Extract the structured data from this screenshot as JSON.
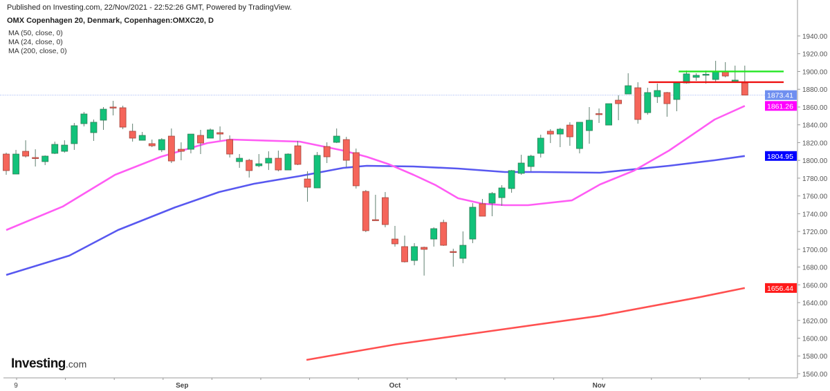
{
  "header": {
    "published": "Published on Investing.com, 22/Nov/2021 - 22:52:26 GMT, Powered by TradingView.",
    "title": "OMX Copenhagen 20, Denmark, Copenhagen:OMXC20, D"
  },
  "logo": {
    "brand": "Investing",
    "domain": ".com"
  },
  "colors": {
    "up": "#12c27a",
    "down": "#f5655a",
    "ma50": "#5858f0",
    "ma24": "#ff5cf4",
    "ma200": "#ff5050",
    "resistance_green": "#22e622",
    "resistance_red": "#ee1111",
    "last_price": "#6f8ff0"
  },
  "chart_data": {
    "type": "candlestick",
    "title": "OMX Copenhagen 20, Denmark, Copenhagen:OMXC20, D",
    "ylim": [
      1550,
      1950
    ],
    "y_ticks": [
      "1940.00",
      "1920.00",
      "1900.00",
      "1880.00",
      "1860.00",
      "1840.00",
      "1820.00",
      "1800.00",
      "1780.00",
      "1760.00",
      "1740.00",
      "1720.00",
      "1700.00",
      "1680.00",
      "1660.00",
      "1640.00",
      "1620.00",
      "1600.00",
      "1580.00",
      "1560.00"
    ],
    "y_tick_values": [
      1940,
      1920,
      1900,
      1880,
      1860,
      1840,
      1820,
      1800,
      1780,
      1760,
      1740,
      1720,
      1700,
      1680,
      1660,
      1640,
      1620,
      1600,
      1580,
      1560
    ],
    "x_labels": [
      {
        "label": "9",
        "bar": 1
      },
      {
        "label": "Sep",
        "bar": 18.1
      },
      {
        "label": "Oct",
        "bar": 40
      },
      {
        "label": "Nov",
        "bar": 61
      }
    ],
    "candles": [
      [
        1807.1,
        1808.7,
        1783.8,
        1788.5
      ],
      [
        1784.6,
        1811.8,
        1784.6,
        1807.1
      ],
      [
        1810.2,
        1822.6,
        1803.2,
        1804.8
      ],
      [
        1803.2,
        1812.5,
        1793.1,
        1802.5
      ],
      [
        1798.6,
        1805.6,
        1794.7,
        1804.8
      ],
      [
        1807.9,
        1821.1,
        1807.1,
        1818.0
      ],
      [
        1810.2,
        1822.6,
        1808.7,
        1817.2
      ],
      [
        1818.8,
        1842.1,
        1811.8,
        1839.0
      ],
      [
        1841.3,
        1854.5,
        1838.2,
        1852.2
      ],
      [
        1831.2,
        1846.0,
        1821.9,
        1842.9
      ],
      [
        1845.2,
        1860.0,
        1834.3,
        1857.6
      ],
      [
        1860.0,
        1867.0,
        1850.6,
        1859.6
      ],
      [
        1859.2,
        1861.5,
        1835.1,
        1837.4
      ],
      [
        1832.8,
        1841.3,
        1821.1,
        1825.0
      ],
      [
        1822.6,
        1832.0,
        1822.6,
        1828.1
      ],
      [
        1818.8,
        1823.4,
        1814.9,
        1816.4
      ],
      [
        1811.8,
        1825.0,
        1809.4,
        1823.4
      ],
      [
        1827.3,
        1835.9,
        1797.0,
        1799.3
      ],
      [
        1812.5,
        1820.3,
        1800.1,
        1810.2
      ],
      [
        1812.5,
        1829.6,
        1807.9,
        1829.6
      ],
      [
        1828.1,
        1834.3,
        1807.1,
        1819.5
      ],
      [
        1825.0,
        1835.9,
        1825.0,
        1834.3
      ],
      [
        1831.2,
        1838.2,
        1822.6,
        1829.6
      ],
      [
        1823.4,
        1828.1,
        1803.2,
        1807.1
      ],
      [
        1798.6,
        1807.1,
        1791.6,
        1802.4
      ],
      [
        1800.1,
        1801.7,
        1780.7,
        1788.5
      ],
      [
        1793.9,
        1807.1,
        1792.3,
        1796.2
      ],
      [
        1797.0,
        1810.2,
        1789.2,
        1802.4
      ],
      [
        1802.4,
        1811.0,
        1787.7,
        1789.2
      ],
      [
        1789.2,
        1807.9,
        1789.2,
        1807.1
      ],
      [
        1816.4,
        1821.9,
        1794.7,
        1795.5
      ],
      [
        1779.1,
        1787.7,
        1753.5,
        1769.8
      ],
      [
        1769.0,
        1809.4,
        1769.0,
        1805.6
      ],
      [
        1815.6,
        1820.3,
        1797.0,
        1804.0
      ],
      [
        1820.3,
        1835.9,
        1819.5,
        1827.3
      ],
      [
        1823.4,
        1826.5,
        1792.3,
        1800.1
      ],
      [
        1808.7,
        1813.3,
        1768.3,
        1771.4
      ],
      [
        1765.1,
        1766.7,
        1719.3,
        1720.9
      ],
      [
        1733.3,
        1761.3,
        1732.5,
        1732.5
      ],
      [
        1758.1,
        1764.4,
        1724.7,
        1727.8
      ],
      [
        1711.5,
        1726.3,
        1703.0,
        1706.1
      ],
      [
        1703.0,
        1715.4,
        1685.1,
        1685.9
      ],
      [
        1687.4,
        1706.9,
        1682.0,
        1703.0
      ],
      [
        1702.2,
        1703.0,
        1670.4,
        1699.9
      ],
      [
        1711.5,
        1724.7,
        1703.0,
        1723.2
      ],
      [
        1730.2,
        1733.3,
        1703.8,
        1704.5
      ],
      [
        1697.5,
        1700.6,
        1680.4,
        1697.0
      ],
      [
        1689.8,
        1720.1,
        1684.3,
        1704.5
      ],
      [
        1711.5,
        1751.9,
        1706.9,
        1747.3
      ],
      [
        1751.2,
        1756.6,
        1737.2,
        1737.2
      ],
      [
        1751.9,
        1764.4,
        1737.2,
        1762.8
      ],
      [
        1758.1,
        1772.1,
        1748.8,
        1769.0
      ],
      [
        1768.3,
        1789.2,
        1763.6,
        1788.5
      ],
      [
        1785.4,
        1806.3,
        1783.8,
        1797.0
      ],
      [
        1793.1,
        1806.3,
        1787.7,
        1804.8
      ],
      [
        1807.9,
        1828.9,
        1803.2,
        1825.0
      ],
      [
        1832.8,
        1835.1,
        1819.5,
        1829.6
      ],
      [
        1829.6,
        1836.6,
        1814.9,
        1835.1
      ],
      [
        1839.7,
        1842.9,
        1816.4,
        1826.5
      ],
      [
        1813.3,
        1842.9,
        1807.9,
        1842.9
      ],
      [
        1833.5,
        1860.0,
        1818.8,
        1845.2
      ],
      [
        1852.6,
        1858.4,
        1842.1,
        1852.2
      ],
      [
        1839.7,
        1863.8,
        1839.7,
        1863.8
      ],
      [
        1867.7,
        1873.2,
        1845.2,
        1863.8
      ],
      [
        1874.7,
        1898.0,
        1874.7,
        1884.0
      ],
      [
        1881.7,
        1887.9,
        1841.3,
        1846.0
      ],
      [
        1853.7,
        1881.7,
        1851.4,
        1876.3
      ],
      [
        1871.6,
        1886.4,
        1864.6,
        1878.6
      ],
      [
        1876.3,
        1877.0,
        1849.1,
        1863.8
      ],
      [
        1868.5,
        1887.9,
        1855.3,
        1887.1
      ],
      [
        1887.1,
        1901.1,
        1886.4,
        1897.3
      ],
      [
        1893.4,
        1898.0,
        1889.5,
        1895.7
      ],
      [
        1896.5,
        1901.1,
        1886.4,
        1896.9
      ],
      [
        1891.0,
        1912.0,
        1888.7,
        1900.4
      ],
      [
        1900.4,
        1910.5,
        1893.4,
        1894.9
      ],
      [
        1888.0,
        1906.6,
        1887.1,
        1890.3
      ],
      [
        1887.1,
        1906.6,
        1873.2,
        1873.41
      ]
    ],
    "series": [
      {
        "name": "MA (50, close, 0)",
        "last": "1804.95",
        "points": [
          [
            0,
            1671.1
          ],
          [
            6.5,
            1692.9
          ],
          [
            11.5,
            1721.6
          ],
          [
            17.4,
            1747.3
          ],
          [
            21.9,
            1764.4
          ],
          [
            25.5,
            1773.7
          ],
          [
            30.2,
            1782.3
          ],
          [
            34.7,
            1791.6
          ],
          [
            37.1,
            1793.9
          ],
          [
            41.9,
            1793.1
          ],
          [
            46.5,
            1790.8
          ],
          [
            51.3,
            1786.9
          ],
          [
            54.9,
            1786.9
          ],
          [
            61.1,
            1786.1
          ],
          [
            68.2,
            1793.9
          ],
          [
            72.9,
            1800.1
          ],
          [
            76,
            1804.95
          ]
        ]
      },
      {
        "name": "MA (24, close, 0)",
        "last": "1861.26",
        "points": [
          [
            0,
            1721.6
          ],
          [
            5.8,
            1748.0
          ],
          [
            11.2,
            1783.8
          ],
          [
            15.9,
            1804.0
          ],
          [
            20.7,
            1819.5
          ],
          [
            23.1,
            1823.4
          ],
          [
            30.2,
            1821.1
          ],
          [
            34.7,
            1811.0
          ],
          [
            37.1,
            1804.0
          ],
          [
            39.4,
            1795.5
          ],
          [
            41.9,
            1783.8
          ],
          [
            44.2,
            1772.1
          ],
          [
            46.5,
            1757.4
          ],
          [
            49.0,
            1751.2
          ],
          [
            51.3,
            1749.6
          ],
          [
            53.7,
            1749.6
          ],
          [
            58.2,
            1755.0
          ],
          [
            61.1,
            1772.9
          ],
          [
            64.6,
            1788.5
          ],
          [
            68.2,
            1811.0
          ],
          [
            72.9,
            1846.0
          ],
          [
            76,
            1861.26
          ]
        ]
      },
      {
        "name": "MA (200, close, 0)",
        "last": "1656.44",
        "points": [
          [
            30.9,
            1575.5
          ],
          [
            36.4,
            1586
          ],
          [
            40.1,
            1593
          ],
          [
            49.2,
            1607
          ],
          [
            61,
            1625
          ],
          [
            71.3,
            1646
          ],
          [
            76,
            1656.44
          ]
        ]
      }
    ],
    "last_price": "1873.41",
    "hlines": [
      {
        "name": "resistance-green",
        "value": 1900,
        "from_bar": 69.2
      },
      {
        "name": "resistance-red",
        "value": 1888,
        "from_bar": 66.1
      }
    ]
  }
}
